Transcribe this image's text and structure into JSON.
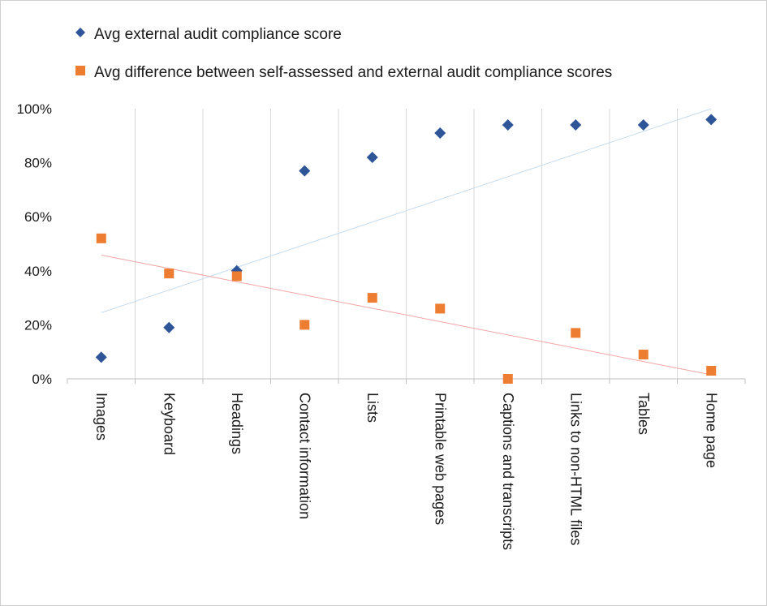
{
  "chart_data": {
    "type": "scatter",
    "categories": [
      "Images",
      "Keyboard",
      "Headings",
      "Contact information",
      "Lists",
      "Printable web pages",
      "Captions and transcripts",
      "Links to non-HTML files",
      "Tables",
      "Home page"
    ],
    "series": [
      {
        "name": "Avg external audit compliance score",
        "marker": "diamond",
        "color": "#2e5597",
        "values": [
          8,
          19,
          40,
          77,
          82,
          91,
          94,
          94,
          94,
          96
        ],
        "trendline": {
          "color": "#c5dcef",
          "from": 24.5,
          "to": 100
        }
      },
      {
        "name": "Avg difference between self-assessed and external audit compliance scores",
        "marker": "square",
        "color": "#ed7d31",
        "values": [
          52,
          39,
          38,
          20,
          30,
          26,
          0,
          17,
          9,
          3
        ],
        "trendline": {
          "color": "#f4a6a6",
          "from": 45.8,
          "to": 1.5
        }
      }
    ],
    "y_ticks": [
      "0%",
      "20%",
      "40%",
      "60%",
      "80%",
      "100%"
    ],
    "ylim": [
      0,
      100
    ],
    "title": "",
    "xlabel": "",
    "ylabel": "",
    "grid": "vertical",
    "legend_position": "top-left"
  }
}
